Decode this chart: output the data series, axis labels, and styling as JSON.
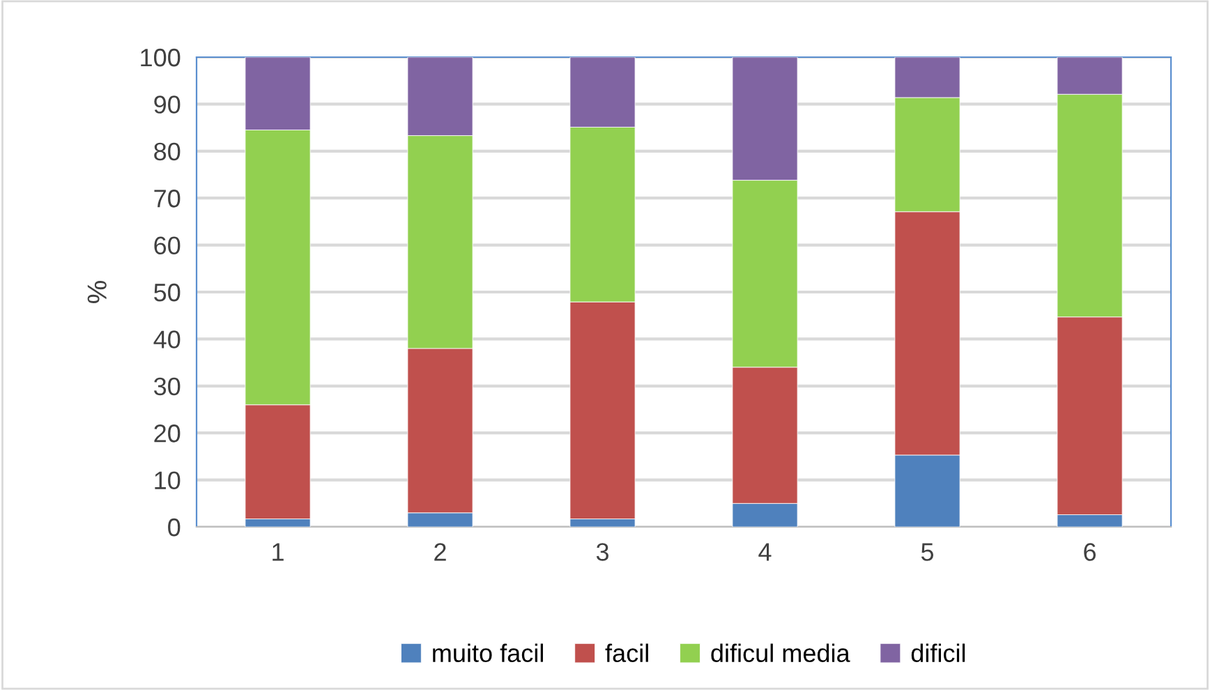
{
  "chart_data": {
    "type": "bar",
    "stacked": true,
    "ylabel": "%",
    "categories": [
      "1",
      "2",
      "3",
      "4",
      "5",
      "6"
    ],
    "series": [
      {
        "name": "muito facil",
        "color": "#4f81bd",
        "values": [
          1.7,
          3.0,
          1.7,
          5.0,
          15.3,
          2.6
        ]
      },
      {
        "name": "facil",
        "color": "#c0504d",
        "values": [
          24.3,
          35.0,
          46.2,
          29.0,
          51.8,
          42.1
        ]
      },
      {
        "name": "dificul media",
        "color": "#92d050",
        "values": [
          58.5,
          45.3,
          37.2,
          39.8,
          24.3,
          47.4
        ]
      },
      {
        "name": "dificil",
        "color": "#8064a2",
        "values": [
          15.5,
          16.7,
          14.9,
          26.2,
          8.6,
          7.9
        ]
      }
    ],
    "ylim": [
      0,
      100
    ],
    "yticks": [
      0,
      10,
      20,
      30,
      40,
      50,
      60,
      70,
      80,
      90,
      100
    ],
    "grid": "y",
    "legend": "bottom"
  }
}
